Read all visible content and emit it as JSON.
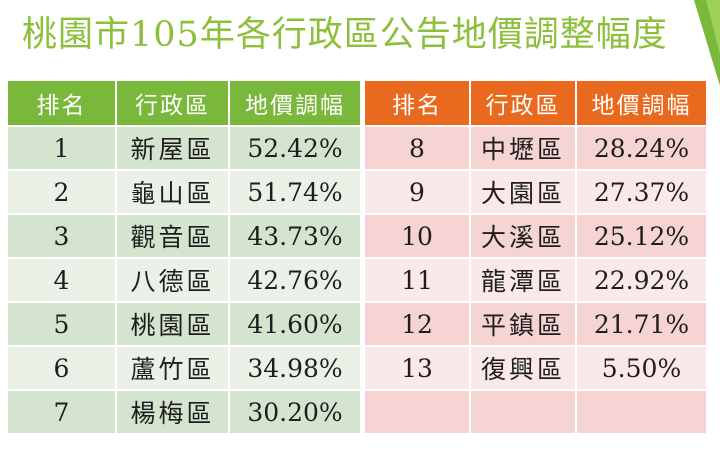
{
  "title": "桃園市105年各行政區公告地價調整幅度",
  "colors": {
    "title": "#8cc03a",
    "left_header": "#7ab83b",
    "right_header": "#e96a1e"
  },
  "left_table": {
    "headers": [
      "排名",
      "行政區",
      "地價調幅"
    ],
    "rows": [
      {
        "rank": "1",
        "district": "新屋區",
        "change": "52.42%"
      },
      {
        "rank": "2",
        "district": "龜山區",
        "change": "51.74%"
      },
      {
        "rank": "3",
        "district": "觀音區",
        "change": "43.73%"
      },
      {
        "rank": "4",
        "district": "八德區",
        "change": "42.76%"
      },
      {
        "rank": "5",
        "district": "桃園區",
        "change": "41.60%"
      },
      {
        "rank": "6",
        "district": "蘆竹區",
        "change": "34.98%"
      },
      {
        "rank": "7",
        "district": "楊梅區",
        "change": "30.20%"
      }
    ]
  },
  "right_table": {
    "headers": [
      "排名",
      "行政區",
      "地價調幅"
    ],
    "rows": [
      {
        "rank": "8",
        "district": "中壢區",
        "change": "28.24%"
      },
      {
        "rank": "9",
        "district": "大園區",
        "change": "27.37%"
      },
      {
        "rank": "10",
        "district": "大溪區",
        "change": "25.12%"
      },
      {
        "rank": "11",
        "district": "龍潭區",
        "change": "22.92%"
      },
      {
        "rank": "12",
        "district": "平鎮區",
        "change": "21.71%"
      },
      {
        "rank": "13",
        "district": "復興區",
        "change": "5.50%"
      },
      {
        "rank": "",
        "district": "",
        "change": ""
      }
    ]
  }
}
